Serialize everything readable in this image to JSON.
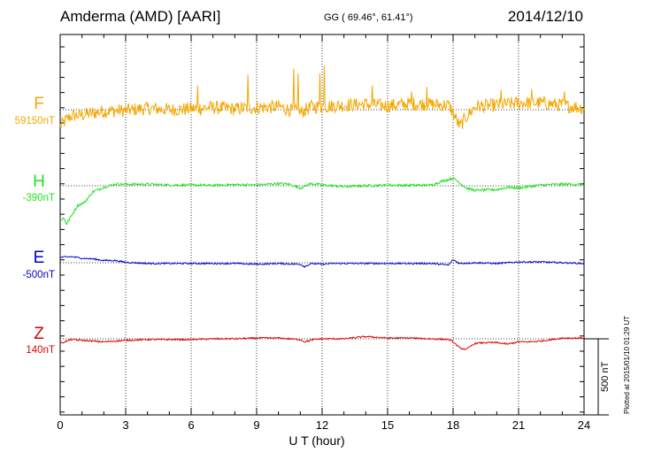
{
  "header": {
    "station": "Amderma (AMD)  [AARI]",
    "coords": "GG ( 69.46°,  61.41°)",
    "date": "2014/12/10"
  },
  "components": [
    {
      "letter": "F",
      "baseline": "59150nT",
      "color": "#f5a800"
    },
    {
      "letter": "H",
      "baseline": "-390nT",
      "color": "#1fe21f"
    },
    {
      "letter": "E",
      "baseline": "-500nT",
      "color": "#0000cc"
    },
    {
      "letter": "Z",
      "baseline": "140nT",
      "color": "#dd0000"
    }
  ],
  "plotted_note": "Plotted at 2015/01/10 01:29 UT",
  "scale_label": "500 nT",
  "chart_data": {
    "type": "line",
    "title": "Amderma (AMD)  [AARI]",
    "xlabel": "U T (hour)",
    "ylabel": "",
    "xlim": [
      0,
      24
    ],
    "x_ticks": [
      0,
      3,
      6,
      9,
      12,
      15,
      18,
      21,
      24
    ],
    "x_tick_labels": [
      "0",
      "3",
      "6",
      "9",
      "12",
      "15",
      "18",
      "21",
      "24"
    ],
    "scale_bar_nT": 500,
    "units": "nT",
    "series": [
      {
        "name": "F",
        "baseline_nT": 59150,
        "color": "#f5a800",
        "noise_nT": 45,
        "points": [
          [
            0,
            -110
          ],
          [
            0.25,
            -70
          ],
          [
            0.5,
            -40
          ],
          [
            1,
            -35
          ],
          [
            2,
            -10
          ],
          [
            3,
            -5
          ],
          [
            4,
            10
          ],
          [
            5,
            0
          ],
          [
            6,
            5
          ],
          [
            7,
            15
          ],
          [
            8,
            5
          ],
          [
            9,
            15
          ],
          [
            10,
            20
          ],
          [
            11,
            -20
          ],
          [
            11.5,
            20
          ],
          [
            12,
            20
          ],
          [
            13,
            30
          ],
          [
            14,
            35
          ],
          [
            15,
            25
          ],
          [
            16,
            40
          ],
          [
            17,
            35
          ],
          [
            17.8,
            30
          ],
          [
            18,
            -20
          ],
          [
            18.3,
            -110
          ],
          [
            18.6,
            -50
          ],
          [
            19,
            20
          ],
          [
            20,
            30
          ],
          [
            21,
            45
          ],
          [
            22,
            45
          ],
          [
            23,
            30
          ],
          [
            24,
            10
          ]
        ],
        "spikes": [
          [
            6.3,
            160
          ],
          [
            8.6,
            230
          ],
          [
            10.7,
            270
          ],
          [
            10.9,
            240
          ],
          [
            11.9,
            240
          ],
          [
            12.1,
            290
          ],
          [
            14.3,
            160
          ],
          [
            16.1,
            120
          ],
          [
            16.8,
            150
          ],
          [
            20.2,
            130
          ],
          [
            21.6,
            135
          ],
          [
            23.1,
            120
          ]
        ]
      },
      {
        "name": "H",
        "baseline_nT": -390,
        "color": "#1fe21f",
        "noise_nT": 8,
        "points": [
          [
            0,
            -230
          ],
          [
            0.15,
            -210
          ],
          [
            0.3,
            -250
          ],
          [
            0.5,
            -200
          ],
          [
            0.8,
            -130
          ],
          [
            1.1,
            -110
          ],
          [
            1.5,
            -40
          ],
          [
            2,
            -10
          ],
          [
            2.5,
            10
          ],
          [
            3,
            10
          ],
          [
            4,
            10
          ],
          [
            5,
            5
          ],
          [
            6,
            5
          ],
          [
            7,
            3
          ],
          [
            8,
            8
          ],
          [
            9,
            5
          ],
          [
            10,
            15
          ],
          [
            10.5,
            10
          ],
          [
            11,
            -15
          ],
          [
            11.5,
            15
          ],
          [
            12,
            5
          ],
          [
            13,
            -5
          ],
          [
            14,
            0
          ],
          [
            15,
            5
          ],
          [
            16,
            3
          ],
          [
            17,
            5
          ],
          [
            17.5,
            30
          ],
          [
            18,
            50
          ],
          [
            18.3,
            20
          ],
          [
            18.6,
            -15
          ],
          [
            19,
            -30
          ],
          [
            20,
            -25
          ],
          [
            20.5,
            -10
          ],
          [
            21,
            -15
          ],
          [
            22,
            5
          ],
          [
            23,
            10
          ],
          [
            23.5,
            10
          ],
          [
            24,
            5
          ]
        ]
      },
      {
        "name": "E",
        "baseline_nT": -500,
        "color": "#0000cc",
        "noise_nT": 5,
        "points": [
          [
            0,
            35
          ],
          [
            0.5,
            40
          ],
          [
            1,
            30
          ],
          [
            1.5,
            25
          ],
          [
            2,
            15
          ],
          [
            2.5,
            15
          ],
          [
            3,
            3
          ],
          [
            4,
            -5
          ],
          [
            5,
            -5
          ],
          [
            6,
            -5
          ],
          [
            7,
            -5
          ],
          [
            8,
            -5
          ],
          [
            9,
            -10
          ],
          [
            10,
            -5
          ],
          [
            11,
            -10
          ],
          [
            11.2,
            -25
          ],
          [
            11.5,
            -5
          ],
          [
            12,
            -10
          ],
          [
            12.5,
            -5
          ],
          [
            13,
            -5
          ],
          [
            14,
            -5
          ],
          [
            15,
            -5
          ],
          [
            16,
            -5
          ],
          [
            17,
            -5
          ],
          [
            17.8,
            -15
          ],
          [
            18,
            20
          ],
          [
            18.3,
            -5
          ],
          [
            19,
            0
          ],
          [
            20,
            -5
          ],
          [
            21,
            5
          ],
          [
            22,
            5
          ],
          [
            23,
            0
          ],
          [
            24,
            -5
          ]
        ]
      },
      {
        "name": "Z",
        "baseline_nT": 140,
        "color": "#dd0000",
        "noise_nT": 5,
        "points": [
          [
            0,
            -30
          ],
          [
            0.5,
            -5
          ],
          [
            1,
            -10
          ],
          [
            2,
            -20
          ],
          [
            3,
            -10
          ],
          [
            4,
            -5
          ],
          [
            5,
            -5
          ],
          [
            6,
            -5
          ],
          [
            7,
            0
          ],
          [
            8,
            0
          ],
          [
            9,
            5
          ],
          [
            10,
            5
          ],
          [
            11,
            -5
          ],
          [
            11.2,
            -20
          ],
          [
            11.6,
            -5
          ],
          [
            12,
            0
          ],
          [
            13,
            0
          ],
          [
            14,
            15
          ],
          [
            15,
            5
          ],
          [
            16,
            5
          ],
          [
            17,
            0
          ],
          [
            17.8,
            -5
          ],
          [
            18,
            -20
          ],
          [
            18.3,
            -60
          ],
          [
            18.6,
            -70
          ],
          [
            19,
            -30
          ],
          [
            19.5,
            -25
          ],
          [
            20,
            -25
          ],
          [
            20.5,
            -35
          ],
          [
            21,
            -20
          ],
          [
            21.5,
            -20
          ],
          [
            22,
            -15
          ],
          [
            23,
            5
          ],
          [
            24,
            5
          ]
        ]
      }
    ]
  }
}
